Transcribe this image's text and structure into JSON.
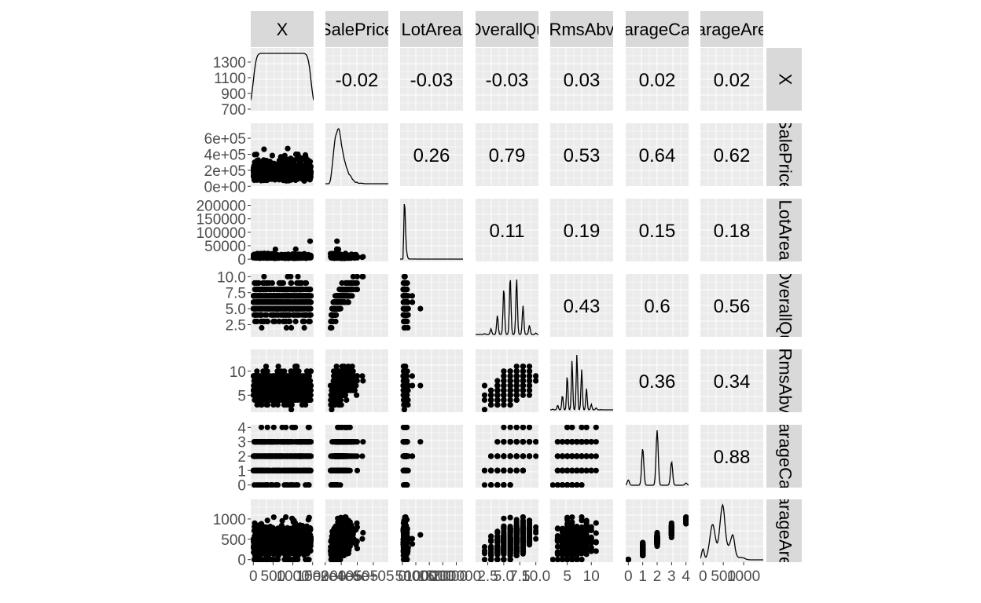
{
  "chart_data": {
    "type": "scatter-matrix",
    "variables": [
      "X",
      "SalePrice",
      "LotArea",
      "OverallQual",
      "TotRmsAbvGrd",
      "GarageCars",
      "GarageArea"
    ],
    "strip_labels": [
      "X",
      "SalePrice",
      "LotArea",
      "OverallQu",
      "RmsAbv",
      "arageCa",
      "arageAre"
    ],
    "variable_ranges": [
      {
        "name": "X",
        "min": 1,
        "max": 1460
      },
      {
        "name": "SalePrice",
        "min": 34900,
        "max": 755000
      },
      {
        "name": "LotArea",
        "min": 1300,
        "max": 215245
      },
      {
        "name": "OverallQual",
        "min": 1,
        "max": 10
      },
      {
        "name": "TotRmsAbvGrd",
        "min": 2,
        "max": 14
      },
      {
        "name": "GarageCars",
        "min": 0,
        "max": 4
      },
      {
        "name": "GarageArea",
        "min": 0,
        "max": 1418
      }
    ],
    "y_axis_ticks": [
      {
        "row": 0,
        "labels": [
          "1300",
          "1100",
          "900",
          "700"
        ],
        "values": [
          1300,
          1100,
          900,
          700
        ]
      },
      {
        "row": 1,
        "labels": [
          "6e+05",
          "4e+05",
          "2e+05",
          "0e+00"
        ],
        "values": [
          600000,
          400000,
          200000,
          0
        ]
      },
      {
        "row": 2,
        "labels": [
          "200000",
          "150000",
          "100000",
          "50000",
          "0"
        ],
        "values": [
          200000,
          150000,
          100000,
          50000,
          0
        ]
      },
      {
        "row": 3,
        "labels": [
          "10.0",
          "7.5",
          "5.0",
          "2.5"
        ],
        "values": [
          10,
          7.5,
          5,
          2.5
        ]
      },
      {
        "row": 4,
        "labels": [
          "10",
          "5"
        ],
        "values": [
          10,
          5
        ]
      },
      {
        "row": 5,
        "labels": [
          "4",
          "3",
          "2",
          "1",
          "0"
        ],
        "values": [
          4,
          3,
          2,
          1,
          0
        ]
      },
      {
        "row": 6,
        "labels": [
          "1000",
          "500",
          "0"
        ],
        "values": [
          1000,
          500,
          0
        ]
      }
    ],
    "x_axis_ticks": [
      {
        "col": 0,
        "labels": [
          "0",
          "500",
          "1000",
          "1500"
        ],
        "values": [
          0,
          500,
          1000,
          1500
        ]
      },
      {
        "col": 1,
        "labels": [
          "0e+00",
          "2e+05",
          "4e+05",
          "6e+05"
        ],
        "values": [
          0,
          200000,
          400000,
          600000
        ]
      },
      {
        "col": 2,
        "labels": [
          "0",
          "50000",
          "100000",
          "150000",
          "200000"
        ],
        "values": [
          0,
          50000,
          100000,
          150000,
          200000
        ]
      },
      {
        "col": 3,
        "labels": [
          "2.5",
          "5.0",
          "7.5",
          "10.0"
        ],
        "values": [
          2.5,
          5,
          7.5,
          10
        ]
      },
      {
        "col": 4,
        "labels": [
          "5",
          "10"
        ],
        "values": [
          5,
          10
        ]
      },
      {
        "col": 5,
        "labels": [
          "0",
          "1",
          "2",
          "3",
          "4"
        ],
        "values": [
          0,
          1,
          2,
          3,
          4
        ]
      },
      {
        "col": 6,
        "labels": [
          "0",
          "500",
          "1000"
        ],
        "values": [
          0,
          500,
          1000
        ]
      }
    ],
    "correlations": [
      {
        "row": 0,
        "col": 1,
        "label": "-0.02",
        "value": -0.02
      },
      {
        "row": 0,
        "col": 2,
        "label": "-0.03",
        "value": -0.03
      },
      {
        "row": 0,
        "col": 3,
        "label": "-0.03",
        "value": -0.03
      },
      {
        "row": 0,
        "col": 4,
        "label": "0.03",
        "value": 0.03
      },
      {
        "row": 0,
        "col": 5,
        "label": "0.02",
        "value": 0.02
      },
      {
        "row": 0,
        "col": 6,
        "label": "0.02",
        "value": 0.02
      },
      {
        "row": 1,
        "col": 2,
        "label": "0.26",
        "value": 0.26
      },
      {
        "row": 1,
        "col": 3,
        "label": "0.79",
        "value": 0.79
      },
      {
        "row": 1,
        "col": 4,
        "label": "0.53",
        "value": 0.53
      },
      {
        "row": 1,
        "col": 5,
        "label": "0.64",
        "value": 0.64
      },
      {
        "row": 1,
        "col": 6,
        "label": "0.62",
        "value": 0.62
      },
      {
        "row": 2,
        "col": 3,
        "label": "0.11",
        "value": 0.11
      },
      {
        "row": 2,
        "col": 4,
        "label": "0.19",
        "value": 0.19
      },
      {
        "row": 2,
        "col": 5,
        "label": "0.15",
        "value": 0.15
      },
      {
        "row": 2,
        "col": 6,
        "label": "0.18",
        "value": 0.18
      },
      {
        "row": 3,
        "col": 4,
        "label": "0.43",
        "value": 0.43
      },
      {
        "row": 3,
        "col": 5,
        "label": "0.6",
        "value": 0.6
      },
      {
        "row": 3,
        "col": 6,
        "label": "0.56",
        "value": 0.56
      },
      {
        "row": 4,
        "col": 5,
        "label": "0.36",
        "value": 0.36
      },
      {
        "row": 4,
        "col": 6,
        "label": "0.34",
        "value": 0.34
      },
      {
        "row": 5,
        "col": 6,
        "label": "0.88",
        "value": 0.88
      }
    ],
    "grid": true,
    "colors": {
      "panel_bg": "#ebebeb",
      "strip_bg": "#d9d9d9",
      "grid": "#ffffff",
      "ink": "#000000",
      "axis_text": "#4d4d4d"
    }
  }
}
